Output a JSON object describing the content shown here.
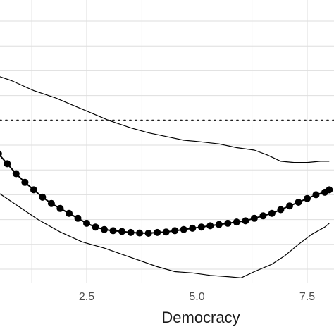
{
  "chart_data": {
    "type": "line",
    "title": "",
    "xlabel": "Democracy",
    "ylabel": "",
    "xlim": [
      0,
      8
    ],
    "ylim": [
      0,
      10
    ],
    "grid": true,
    "x_ticks": [
      2.5,
      5.0,
      7.5
    ],
    "x_tick_labels": [
      "2.5",
      "5.0",
      "7.5"
    ],
    "reference_line": {
      "style": "dotted",
      "y": 6.0
    },
    "series": [
      {
        "role": "upper-bound",
        "style": "line",
        "x": [
          0,
          0.3,
          0.8,
          1.3,
          1.8,
          2.2,
          2.6,
          3.0,
          3.5,
          3.9,
          4.3,
          4.7,
          5.0,
          5.5,
          5.9,
          6.3,
          6.6,
          6.9,
          7.2,
          7.5,
          7.8,
          8.0
        ],
        "y": [
          8.2,
          7.9,
          7.6,
          7.2,
          6.9,
          6.6,
          6.3,
          6.0,
          5.7,
          5.5,
          5.35,
          5.2,
          5.15,
          5.05,
          4.9,
          4.8,
          4.6,
          4.35,
          4.3,
          4.3,
          4.35,
          4.35
        ]
      },
      {
        "role": "estimate",
        "style": "line-points",
        "x": [
          0,
          0.15,
          0.3,
          0.5,
          0.7,
          0.9,
          1.1,
          1.3,
          1.5,
          1.7,
          1.9,
          2.1,
          2.3,
          2.5,
          2.7,
          2.9,
          3.1,
          3.3,
          3.5,
          3.7,
          3.9,
          4.1,
          4.3,
          4.5,
          4.7,
          4.9,
          5.1,
          5.3,
          5.5,
          5.7,
          5.9,
          6.1,
          6.3,
          6.5,
          6.7,
          6.9,
          7.1,
          7.3,
          7.5,
          7.7,
          7.9,
          8.0
        ],
        "y": [
          5.6,
          5.3,
          5.0,
          4.65,
          4.25,
          3.85,
          3.5,
          3.2,
          2.9,
          2.65,
          2.45,
          2.25,
          2.05,
          1.85,
          1.7,
          1.6,
          1.55,
          1.52,
          1.48,
          1.46,
          1.45,
          1.48,
          1.5,
          1.55,
          1.6,
          1.65,
          1.7,
          1.75,
          1.8,
          1.85,
          1.9,
          1.95,
          2.05,
          2.15,
          2.25,
          2.4,
          2.55,
          2.7,
          2.85,
          3.0,
          3.1,
          3.2
        ]
      },
      {
        "role": "lower-bound",
        "style": "line",
        "x": [
          0,
          0.4,
          0.9,
          1.4,
          1.9,
          2.4,
          2.9,
          3.3,
          3.7,
          4.1,
          4.5,
          4.9,
          5.3,
          5.7,
          6.0,
          6.3,
          6.7,
          7.0,
          7.3,
          7.6,
          7.9,
          8.0
        ],
        "y": [
          3.6,
          3.2,
          2.6,
          2.0,
          1.5,
          1.1,
          0.85,
          0.6,
          0.35,
          0.1,
          -0.1,
          -0.15,
          -0.25,
          -0.3,
          -0.35,
          -0.1,
          0.2,
          0.55,
          1.0,
          1.4,
          1.7,
          1.85
        ]
      }
    ]
  }
}
